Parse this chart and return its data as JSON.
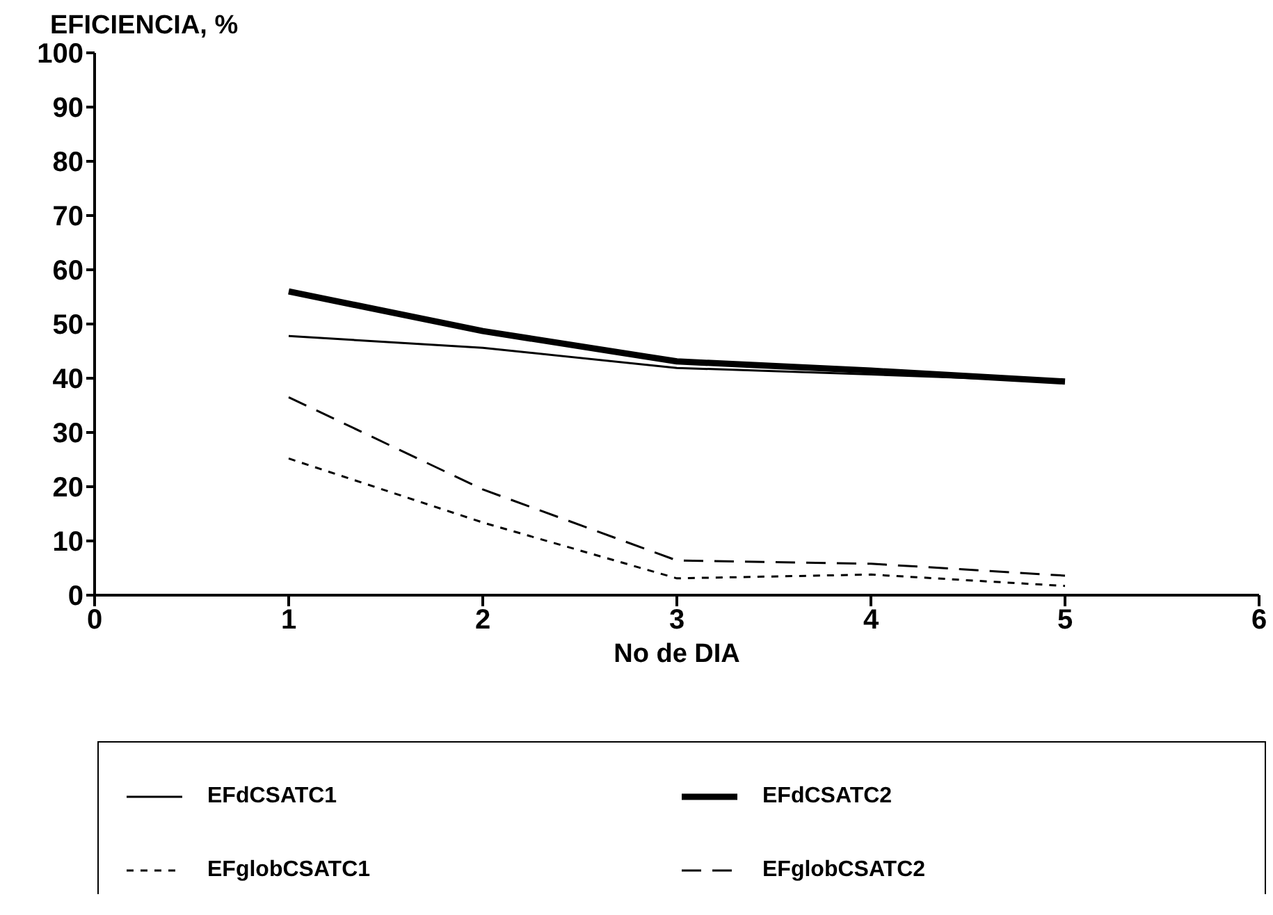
{
  "chart_data": {
    "type": "line",
    "ylabel": "EFICIENCIA, %",
    "xlabel": "No de DIA",
    "x": [
      1,
      2,
      3,
      4,
      5
    ],
    "series": [
      {
        "name": "EFdCSATC1",
        "color": "#000000",
        "line_style": "solid",
        "values": [
          47.8,
          45.6,
          41.9,
          40.7,
          39.4
        ]
      },
      {
        "name": "EFdCSATC2",
        "color": "#000000",
        "line_style": "solid",
        "values": [
          56,
          48.7,
          43.1,
          41.4,
          39.4
        ]
      },
      {
        "name": "EFglobCSATC1",
        "color": "#000000",
        "line_style": "dotted",
        "values": [
          25.2,
          13.4,
          3.1,
          3.8,
          1.7
        ]
      },
      {
        "name": "EFglobCSATC2",
        "color": "#000000",
        "line_style": "dashed",
        "values": [
          36.5,
          19.5,
          6.4,
          5.8,
          3.6
        ]
      }
    ],
    "xlim": [
      0,
      6
    ],
    "xticks": [
      0,
      1,
      2,
      3,
      4,
      5,
      6
    ],
    "ylim": [
      0,
      100
    ],
    "yticks": [
      0,
      10,
      20,
      30,
      40,
      50,
      60,
      70,
      80,
      90,
      100
    ],
    "grid": false,
    "legend": "bottom",
    "marker": "none"
  }
}
